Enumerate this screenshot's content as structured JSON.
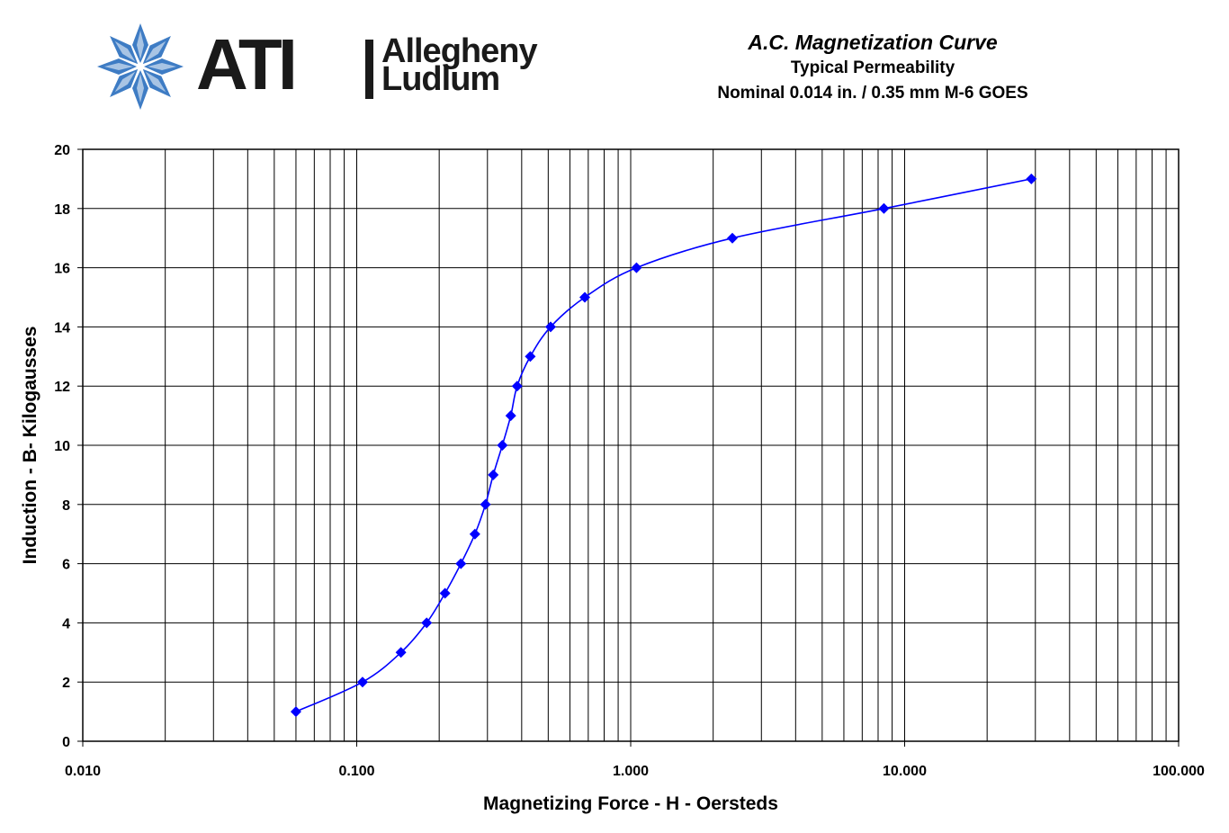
{
  "logo": {
    "mark_icon": "star-snowflake-logo-icon",
    "abbrev": "ATI",
    "name_line1": "Allegheny",
    "name_line2": "Ludlum",
    "color": "#3e7cc4"
  },
  "chart_data": {
    "type": "scatter",
    "title": "A.C. Magnetization Curve",
    "subtitle_lines": [
      "Typical Permeability",
      "Nominal 0.014 in. / 0.35 mm M-6 GOES"
    ],
    "xlabel": "Magnetizing Force - H - Oersteds",
    "ylabel": "Induction - B- Kilogausses",
    "x_scale": "log",
    "xlim": [
      0.01,
      100
    ],
    "ylim": [
      0,
      20
    ],
    "x_ticks": [
      "0.010",
      "0.100",
      "1.000",
      "10.000",
      "100.000"
    ],
    "y_ticks": [
      "0",
      "2",
      "4",
      "6",
      "8",
      "10",
      "12",
      "14",
      "16",
      "18",
      "20"
    ],
    "grid": true,
    "series_color": "#0000ff",
    "marker": "diamond",
    "connected_smooth_line": true,
    "x": [
      0.06,
      0.105,
      0.145,
      0.18,
      0.21,
      0.24,
      0.27,
      0.295,
      0.315,
      0.34,
      0.365,
      0.385,
      0.43,
      0.51,
      0.68,
      1.05,
      2.35,
      8.4,
      29.0
    ],
    "y": [
      1,
      2,
      3,
      4,
      5,
      6,
      7,
      8,
      9,
      10,
      11,
      12,
      13,
      14,
      15,
      16,
      17,
      18,
      19
    ]
  }
}
